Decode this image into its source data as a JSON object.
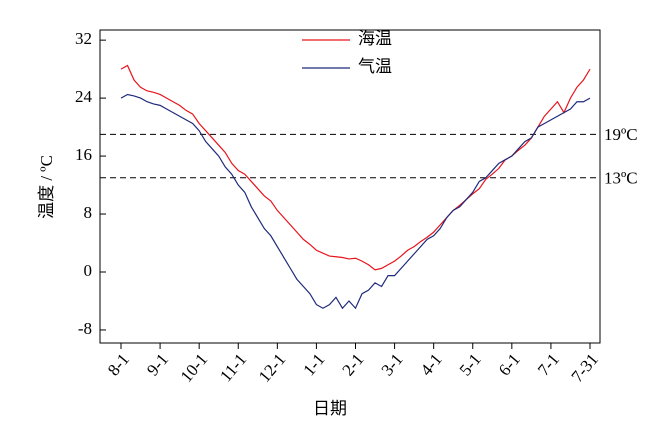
{
  "chart_data": {
    "type": "line",
    "x_label": "日期",
    "y_label": "温度 / ºC",
    "categories": [
      "8-1",
      null,
      null,
      null,
      null,
      null,
      "9-1",
      null,
      null,
      null,
      null,
      null,
      "10-1",
      null,
      null,
      null,
      null,
      null,
      "11-1",
      null,
      null,
      null,
      null,
      null,
      "12-1",
      null,
      null,
      null,
      null,
      null,
      "1-1",
      null,
      null,
      null,
      null,
      null,
      "2-1",
      null,
      null,
      null,
      null,
      null,
      "3-1",
      null,
      null,
      null,
      null,
      null,
      "4-1",
      null,
      null,
      null,
      null,
      null,
      "5-1",
      null,
      null,
      null,
      null,
      null,
      "6-1",
      null,
      null,
      null,
      null,
      null,
      "7-1",
      null,
      null,
      null,
      null,
      null,
      "7-31"
    ],
    "series": [
      {
        "name": "海温",
        "color": "#e8141c",
        "values": [
          28.0,
          28.5,
          26.5,
          25.5,
          25.0,
          24.8,
          24.5,
          24.0,
          23.5,
          23.0,
          22.3,
          21.8,
          20.5,
          19.5,
          18.5,
          17.5,
          16.5,
          15.0,
          14.0,
          13.5,
          12.5,
          11.5,
          10.5,
          9.8,
          8.5,
          7.5,
          6.5,
          5.5,
          4.5,
          3.8,
          3.0,
          2.6,
          2.2,
          2.1,
          2.0,
          1.8,
          1.9,
          1.5,
          1.0,
          0.3,
          0.5,
          1.0,
          1.5,
          2.2,
          3.0,
          3.5,
          4.2,
          4.8,
          5.5,
          6.5,
          7.5,
          8.5,
          9.2,
          10.0,
          10.8,
          11.5,
          12.8,
          13.5,
          14.3,
          15.5,
          16.0,
          16.8,
          17.5,
          18.5,
          20.0,
          21.5,
          22.5,
          23.5,
          22.0,
          24.0,
          25.5,
          26.5,
          28.0
        ]
      },
      {
        "name": "气温",
        "color": "#1f2a7a",
        "values": [
          24.0,
          24.5,
          24.3,
          24.0,
          23.5,
          23.2,
          23.0,
          22.5,
          22.0,
          21.5,
          21.0,
          20.5,
          19.5,
          18.0,
          17.0,
          16.0,
          14.5,
          13.5,
          12.0,
          11.0,
          9.0,
          7.5,
          6.0,
          5.0,
          3.5,
          2.0,
          0.5,
          -1.0,
          -2.0,
          -3.0,
          -4.5,
          -5.0,
          -4.5,
          -3.5,
          -5.0,
          -4.0,
          -5.0,
          -3.0,
          -2.5,
          -1.5,
          -2.0,
          -0.5,
          -0.5,
          0.5,
          1.5,
          2.5,
          3.5,
          4.5,
          5.0,
          6.0,
          7.5,
          8.5,
          9.0,
          10.0,
          11.0,
          12.5,
          13.0,
          14.0,
          15.0,
          15.5,
          16.0,
          17.0,
          18.0,
          18.5,
          20.0,
          20.5,
          21.0,
          21.5,
          22.0,
          22.5,
          23.5,
          23.5,
          24.0
        ]
      }
    ],
    "reference_lines": [
      {
        "value": 19,
        "label": "19ºC"
      },
      {
        "value": 13,
        "label": "13ºC"
      }
    ],
    "ylim": [
      -9.8,
      33.4
    ],
    "yticks": [
      -8,
      0,
      8,
      16,
      24,
      32
    ],
    "legend": "top"
  }
}
